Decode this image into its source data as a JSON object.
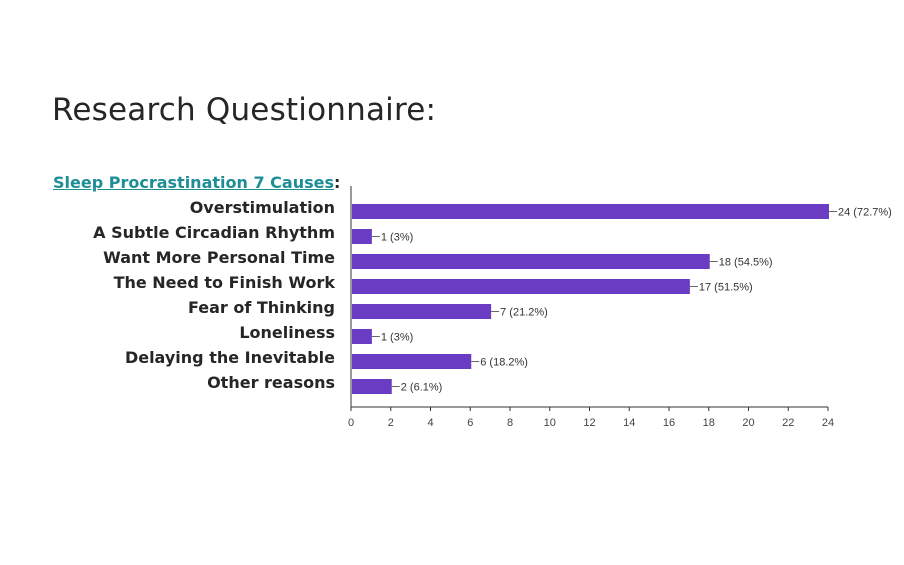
{
  "page": {
    "title": "Research Questionnaire:"
  },
  "chart_link": {
    "text": "Sleep Procrastination 7 Causes",
    "suffix": ":"
  },
  "chart_data": {
    "type": "bar",
    "orientation": "horizontal",
    "categories": [
      "Overstimulation",
      "A Subtle Circadian Rhythm",
      "Want More Personal Time",
      "The Need to Finish Work",
      "Fear of Thinking",
      "Loneliness",
      "Delaying the Inevitable",
      "Other reasons"
    ],
    "values": [
      24,
      1,
      18,
      17,
      7,
      1,
      6,
      2
    ],
    "data_labels": [
      "24 (72.7%)",
      "1 (3%)",
      "18 (54.5%)",
      "17 (51.5%)",
      "7 (21.2%)",
      "1 (3%)",
      "6 (18.2%)",
      "2 (6.1%)"
    ],
    "xlim": [
      0,
      24
    ],
    "xticks": [
      0,
      2,
      4,
      6,
      8,
      10,
      12,
      14,
      16,
      18,
      20,
      22,
      24
    ],
    "bar_color": "#6a3bc3",
    "grid": false,
    "legend": "none"
  }
}
